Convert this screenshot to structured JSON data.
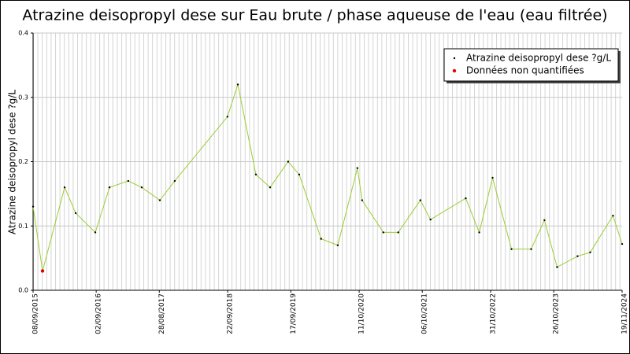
{
  "chart_data": {
    "type": "line",
    "title": "Atrazine deisopropyl dese sur Eau brute / phase aqueuse de l'eau (eau filtrée)",
    "y_label": "Atrazine deisopropyl dese ?g/L",
    "xlim": [
      "2015-09-08",
      "2024-11-19"
    ],
    "xticks": [
      {
        "value": "2015-09-08",
        "label": "08/09/2015"
      },
      {
        "value": "2016-09-02",
        "label": "02/09/2016"
      },
      {
        "value": "2017-08-28",
        "label": "28/08/2017"
      },
      {
        "value": "2018-09-22",
        "label": "22/09/2018"
      },
      {
        "value": "2019-09-17",
        "label": "17/09/2019"
      },
      {
        "value": "2020-10-11",
        "label": "11/10/2020"
      },
      {
        "value": "2021-10-06",
        "label": "06/10/2021"
      },
      {
        "value": "2022-10-31",
        "label": "31/10/2022"
      },
      {
        "value": "2023-10-26",
        "label": "26/10/2023"
      },
      {
        "value": "2024-11-19",
        "label": "19/11/2024"
      }
    ],
    "ylim": [
      0,
      0.4
    ],
    "yticks": [
      {
        "value": 0,
        "label": "0.0"
      },
      0.1,
      0.2,
      0.3,
      0.4
    ],
    "grid": true,
    "legend": "top-right",
    "series": [
      {
        "name": "Atrazine deisopropyl dese ?g/L",
        "color": "#9acd32",
        "marker_color": "#000000",
        "x": [
          "2015-09-08",
          "2015-11-01",
          "2016-03-06",
          "2016-05-08",
          "2016-08-28",
          "2016-11-17",
          "2017-03-04",
          "2017-05-20",
          "2017-08-31",
          "2017-11-24",
          "2018-09-21",
          "2018-11-19",
          "2019-03-02",
          "2019-05-22",
          "2019-09-02",
          "2019-11-04",
          "2020-03-08",
          "2020-06-11",
          "2020-10-01",
          "2020-10-28",
          "2021-02-26",
          "2021-05-22",
          "2021-09-25",
          "2021-11-22",
          "2022-06-11",
          "2022-08-27",
          "2022-11-11",
          "2023-02-27",
          "2023-06-19",
          "2023-09-03",
          "2023-11-14",
          "2024-03-10",
          "2024-05-21",
          "2024-09-28",
          "2024-11-19"
        ],
        "values": [
          0.13,
          0.03,
          0.16,
          0.12,
          0.09,
          0.16,
          0.17,
          0.16,
          0.14,
          0.17,
          0.27,
          0.32,
          0.18,
          0.16,
          0.2,
          0.18,
          0.08,
          0.07,
          0.19,
          0.14,
          0.09,
          0.09,
          0.14,
          0.11,
          0.143,
          0.09,
          0.175,
          0.064,
          0.064,
          0.109,
          0.036,
          0.053,
          0.059,
          0.116,
          0.072
        ]
      },
      {
        "name": "Données non quantifiées",
        "color": "#e00000",
        "marker_color": "#e00000",
        "x": [
          "2015-11-01"
        ],
        "values": [
          0.03
        ]
      }
    ]
  }
}
